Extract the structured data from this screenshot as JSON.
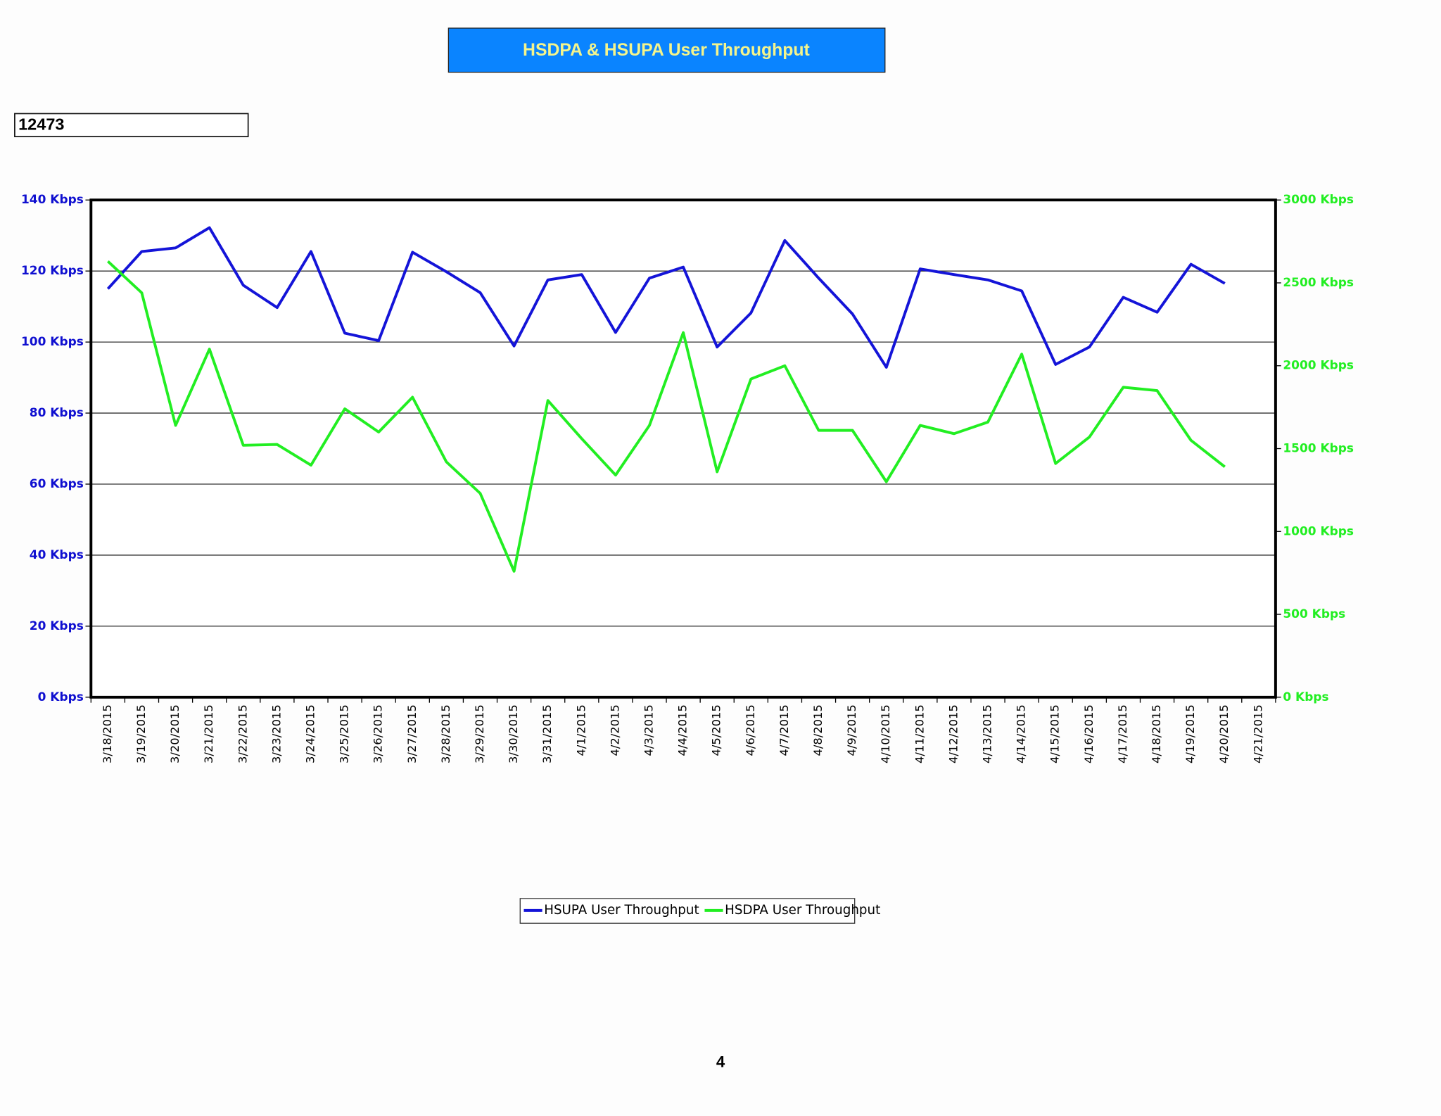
{
  "chart_data": {
    "type": "line",
    "title": "HSDPA & HSUPA User Throughput",
    "annotations": [
      "12473",
      "4"
    ],
    "categories": [
      "3/18/2015",
      "3/19/2015",
      "3/20/2015",
      "3/21/2015",
      "3/22/2015",
      "3/23/2015",
      "3/24/2015",
      "3/25/2015",
      "3/26/2015",
      "3/27/2015",
      "3/28/2015",
      "3/29/2015",
      "3/30/2015",
      "3/31/2015",
      "4/1/2015",
      "4/2/2015",
      "4/3/2015",
      "4/4/2015",
      "4/5/2015",
      "4/6/2015",
      "4/7/2015",
      "4/8/2015",
      "4/9/2015",
      "4/10/2015",
      "4/11/2015",
      "4/12/2015",
      "4/13/2015",
      "4/14/2015",
      "4/15/2015",
      "4/16/2015",
      "4/17/2015",
      "4/18/2015",
      "4/19/2015",
      "4/20/2015",
      "4/21/2015"
    ],
    "series": [
      {
        "name": "HSUPA User Throughput",
        "color": "#1414d8",
        "axis": "y",
        "values": [
          115,
          125.5,
          126.5,
          132.2,
          116,
          109.7,
          125.5,
          102.5,
          100.4,
          125.3,
          119.8,
          113.9,
          98.9,
          117.5,
          119,
          102.7,
          118,
          121.1,
          98.6,
          108.2,
          128.6,
          118,
          107.9,
          92.9,
          120.6,
          119,
          117.5,
          114.4,
          93.7,
          98.6,
          112.6,
          108.4,
          121.9,
          116.5,
          null
        ]
      },
      {
        "name": "HSDPA User Throughput",
        "color": "#22ee22",
        "axis": "y2",
        "values": [
          2630,
          2440,
          1640,
          2100,
          1520,
          1525,
          1400,
          1740,
          1600,
          1810,
          1420,
          1230,
          760,
          1790,
          1560,
          1340,
          1640,
          2200,
          1360,
          1920,
          2000,
          1610,
          1610,
          1300,
          1640,
          1590,
          1660,
          2070,
          1410,
          1570,
          1870,
          1850,
          1550,
          1390,
          null
        ]
      }
    ],
    "ylim": [
      0,
      140
    ],
    "yticks": [
      {
        "value": 0,
        "label": "0 Kbps"
      },
      {
        "value": 20,
        "label": "20 Kbps"
      },
      {
        "value": 40,
        "label": "40 Kbps"
      },
      {
        "value": 60,
        "label": "60 Kbps"
      },
      {
        "value": 80,
        "label": "80 Kbps"
      },
      {
        "value": 100,
        "label": "100 Kbps"
      },
      {
        "value": 120,
        "label": "120 Kbps"
      },
      {
        "value": 140,
        "label": "140 Kbps"
      }
    ],
    "y2lim": [
      0,
      3000
    ],
    "y2ticks": [
      {
        "value": 0,
        "label": "0 Kbps"
      },
      {
        "value": 500,
        "label": "500 Kbps"
      },
      {
        "value": 1000,
        "label": "1000 Kbps"
      },
      {
        "value": 1500,
        "label": "1500 Kbps"
      },
      {
        "value": 2000,
        "label": "2000 Kbps"
      },
      {
        "value": 2500,
        "label": "2500 Kbps"
      },
      {
        "value": 3000,
        "label": "3000 Kbps"
      }
    ],
    "grid": true,
    "legend": "bottom"
  }
}
